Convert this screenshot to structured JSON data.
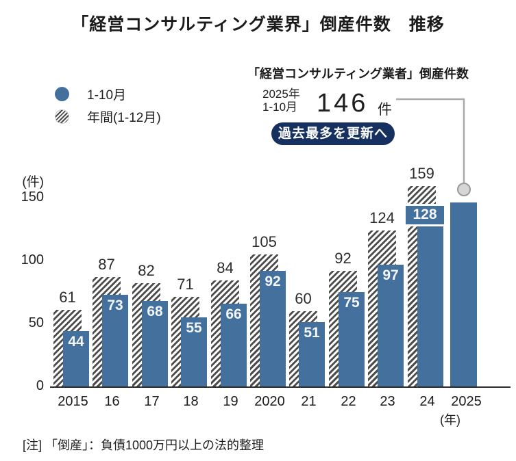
{
  "page": {
    "title": "「経営コンサルティング業界」倒産件数　推移",
    "note": "[注] 「倒産」：負債1000万円以上の法的整理"
  },
  "legend": {
    "items": [
      {
        "label": "1-10月",
        "swatch": "solid"
      },
      {
        "label": "年間(1-12月)",
        "swatch": "hatch"
      }
    ]
  },
  "callout": {
    "heading": "「経営コンサルティング業者」倒産件数",
    "period_line1": "2025年",
    "period_line2": "1-10月",
    "value": "146",
    "unit": "件",
    "badge": "過去最多を更新へ"
  },
  "chart_data": {
    "type": "bar",
    "title": "「経営コンサルティング業界」倒産件数 推移",
    "unit_label": "(件)",
    "x_axis_unit": "(年)",
    "categories": [
      "2015",
      "16",
      "17",
      "18",
      "19",
      "2020",
      "21",
      "22",
      "23",
      "24",
      "2025"
    ],
    "series": [
      {
        "name": "年間(1-12月)",
        "style": "hatch",
        "values": [
          61,
          87,
          82,
          71,
          84,
          105,
          60,
          92,
          124,
          159,
          null
        ]
      },
      {
        "name": "1-10月",
        "style": "solid",
        "values": [
          44,
          73,
          68,
          55,
          66,
          92,
          51,
          75,
          97,
          128,
          146
        ]
      }
    ],
    "partial_label_modes": [
      "inside",
      "inside",
      "inside",
      "inside",
      "inside",
      "inside",
      "inside",
      "inside",
      "inside",
      "boxed",
      "callout"
    ],
    "yticks": [
      0,
      50,
      100,
      150
    ],
    "ylim": [
      0,
      180
    ],
    "grid": false,
    "legend_position": "top-left",
    "colors": {
      "bar_blue": "#44709E",
      "hatch_stroke": "#4C4C4C",
      "badge_bg": "#16305F",
      "connector": "#A9A9A9",
      "marker_fill": "#D6D6D6",
      "marker_stroke": "#999999"
    }
  }
}
